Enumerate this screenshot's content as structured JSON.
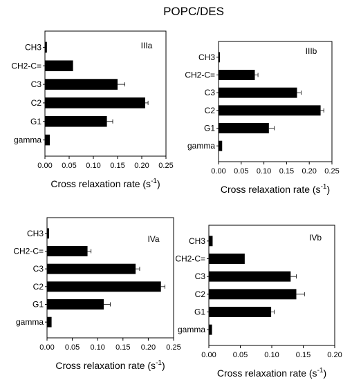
{
  "title": "POPC/DES",
  "chart_data": [
    {
      "type": "bar",
      "orientation": "horizontal",
      "panel_label": "IIIa",
      "categories": [
        "CH3",
        "CH2-C=",
        "C3",
        "C2",
        "G1",
        "gamma"
      ],
      "values": [
        0.004,
        0.058,
        0.15,
        0.207,
        0.128,
        0.01
      ],
      "errors": [
        0.0,
        0.0,
        0.015,
        0.006,
        0.012,
        0.0
      ],
      "xlim": [
        0,
        0.25
      ],
      "xticks": [
        "0.00",
        "0.05",
        "0.10",
        "0.15",
        "0.20",
        "0.25"
      ],
      "xlabel_main": "Cross relaxation rate (s",
      "xlabel_sup": "-1",
      "xlabel_end": ")"
    },
    {
      "type": "bar",
      "orientation": "horizontal",
      "panel_label": "IIIb",
      "categories": [
        "CH3",
        "CH2-C=",
        "C3",
        "C2",
        "G1",
        "gamma"
      ],
      "values": [
        0.003,
        0.08,
        0.173,
        0.225,
        0.111,
        0.008
      ],
      "errors": [
        0.0,
        0.007,
        0.009,
        0.007,
        0.012,
        0.0
      ],
      "xlim": [
        0,
        0.25
      ],
      "xticks": [
        "0.00",
        "0.05",
        "0.10",
        "0.15",
        "0.20",
        "0.25"
      ],
      "xlabel_main": "Cross relaxation rate (s",
      "xlabel_sup": "-1",
      "xlabel_end": ")"
    },
    {
      "type": "bar",
      "orientation": "horizontal",
      "panel_label": "IVa",
      "categories": [
        "CH3",
        "CH2-C=",
        "C3",
        "C2",
        "G1",
        "gamma"
      ],
      "values": [
        0.004,
        0.08,
        0.175,
        0.225,
        0.112,
        0.009
      ],
      "errors": [
        0.0,
        0.007,
        0.008,
        0.008,
        0.013,
        0.0
      ],
      "xlim": [
        0,
        0.25
      ],
      "xticks": [
        "0.00",
        "0.05",
        "0.10",
        "0.15",
        "0.20",
        "0.25"
      ],
      "xlabel_main": "Cross relaxation rate (s",
      "xlabel_sup": "-1",
      "xlabel_end": ")"
    },
    {
      "type": "bar",
      "orientation": "horizontal",
      "panel_label": "IVb",
      "categories": [
        "CH3",
        "CH2-C=",
        "C3",
        "C2",
        "G1",
        "gamma"
      ],
      "values": [
        0.006,
        0.057,
        0.13,
        0.139,
        0.099,
        0.005
      ],
      "errors": [
        0.0,
        0.0,
        0.009,
        0.013,
        0.005,
        0.0
      ],
      "xlim": [
        0,
        0.2
      ],
      "xticks": [
        "0.00",
        "0.05",
        "0.10",
        "0.15",
        "0.20"
      ],
      "xlabel_main": "Cross relaxation rate (s",
      "xlabel_sup": "-1",
      "xlabel_end": ")"
    }
  ]
}
